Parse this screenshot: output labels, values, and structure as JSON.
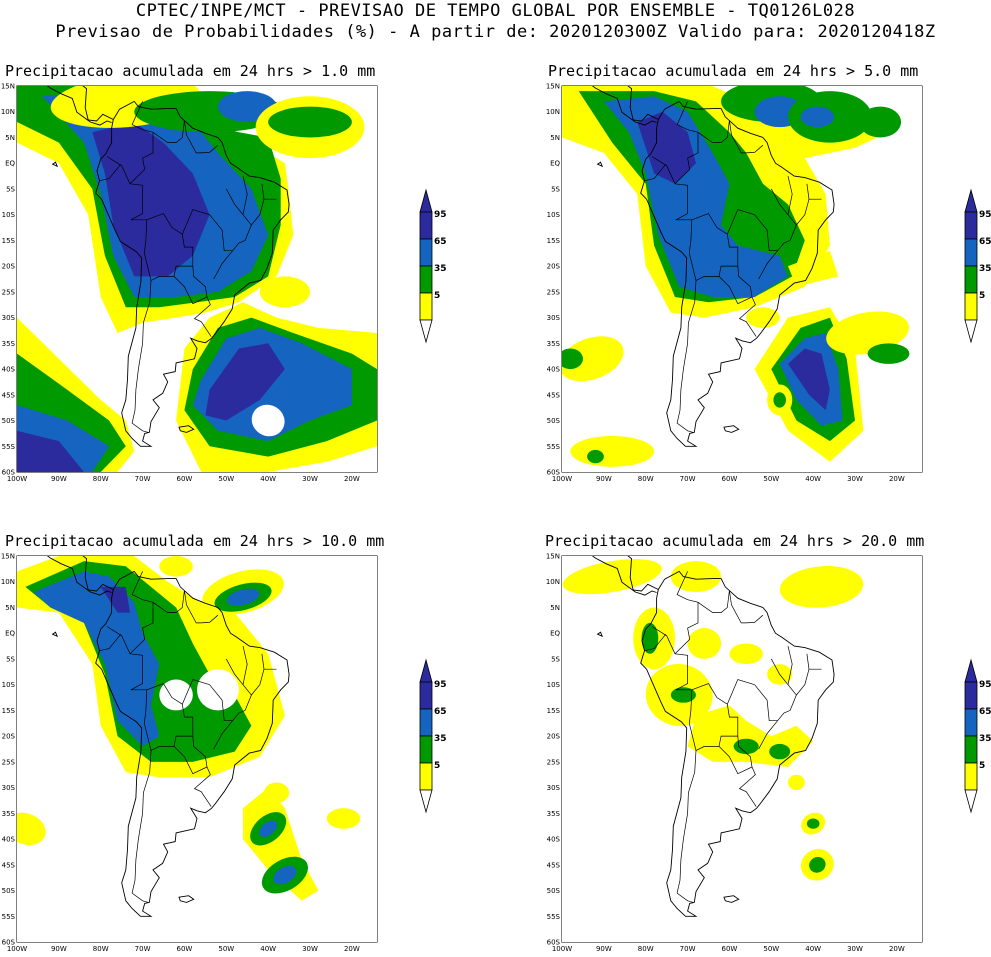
{
  "header": {
    "line1": "CPTEC/INPE/MCT - PREVISAO DE TEMPO GLOBAL POR ENSEMBLE - TQ0126L028",
    "line2": "Previsao de Probabilidades (%) -  A partir de: 2020120300Z  Valido para: 2020120418Z"
  },
  "lat_labels": [
    "15N",
    "10N",
    "5N",
    "EQ",
    "5S",
    "10S",
    "15S",
    "20S",
    "25S",
    "30S",
    "35S",
    "40S",
    "45S",
    "50S",
    "55S",
    "60S"
  ],
  "lon_labels": [
    "100W",
    "90W",
    "80W",
    "70W",
    "60W",
    "50W",
    "40W",
    "30W",
    "20W"
  ],
  "legend": {
    "levels": [
      "95",
      "65",
      "35",
      "5"
    ],
    "colors": {
      "c5": "#ffff00",
      "c35": "#009900",
      "c65": "#1565c0",
      "c95": "#2b2b9e",
      "land_line": "#000000"
    }
  },
  "panels": [
    {
      "title": "Precipitacao acumulada em 24 hrs > 1.0 mm"
    },
    {
      "title": "Precipitacao acumulada em 24 hrs > 5.0 mm"
    },
    {
      "title": "Precipitacao acumulada em 24 hrs > 10.0 mm"
    },
    {
      "title": "Precipitacao acumulada em 24 hrs > 20.0 mm"
    }
  ]
}
